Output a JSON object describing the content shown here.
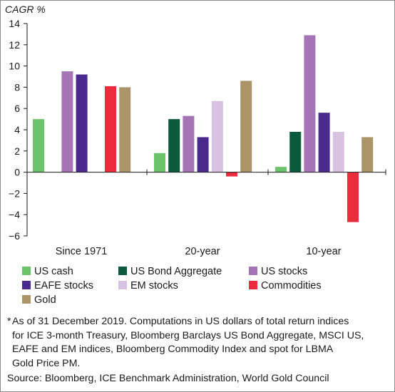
{
  "chart_data": {
    "type": "bar",
    "ylabel": "CAGR %",
    "ylim": [
      -6,
      14
    ],
    "yticks": [
      14,
      12,
      10,
      8,
      6,
      4,
      2,
      0,
      -2,
      -4,
      -6
    ],
    "categories": [
      "Since 1971",
      "20-year",
      "10-year"
    ],
    "series": [
      {
        "name": "US cash",
        "color": "#6cc46a",
        "values": [
          5.0,
          1.8,
          0.5
        ]
      },
      {
        "name": "US Bond Aggregate",
        "color": "#0c5a3c",
        "values": [
          null,
          5.0,
          3.8
        ]
      },
      {
        "name": "US stocks",
        "color": "#a474b4",
        "values": [
          9.5,
          5.3,
          12.9
        ]
      },
      {
        "name": "EAFE stocks",
        "color": "#4a2a8c",
        "values": [
          9.2,
          3.3,
          5.6
        ]
      },
      {
        "name": "EM stocks",
        "color": "#d7c2e1",
        "values": [
          null,
          6.7,
          3.8
        ]
      },
      {
        "name": "Commodities",
        "color": "#ea2c3c",
        "values": [
          8.1,
          -0.4,
          -4.7
        ]
      },
      {
        "name": "Gold",
        "color": "#ab9468",
        "values": [
          8.0,
          8.6,
          3.3
        ]
      }
    ],
    "legend_position": "bottom"
  },
  "footnote": {
    "marker": "*",
    "lines": [
      "As of 31 December 2019. Computations in US dollars of total return indices",
      "for ICE 3-month Treasury, Bloomberg Barclays US Bond Aggregate, MSCI US,",
      "EAFE and EM indices, Bloomberg Commodity Index and spot for LBMA",
      "Gold Price PM."
    ]
  },
  "source": "Source: Bloomberg, ICE Benchmark Administration, World Gold Council"
}
